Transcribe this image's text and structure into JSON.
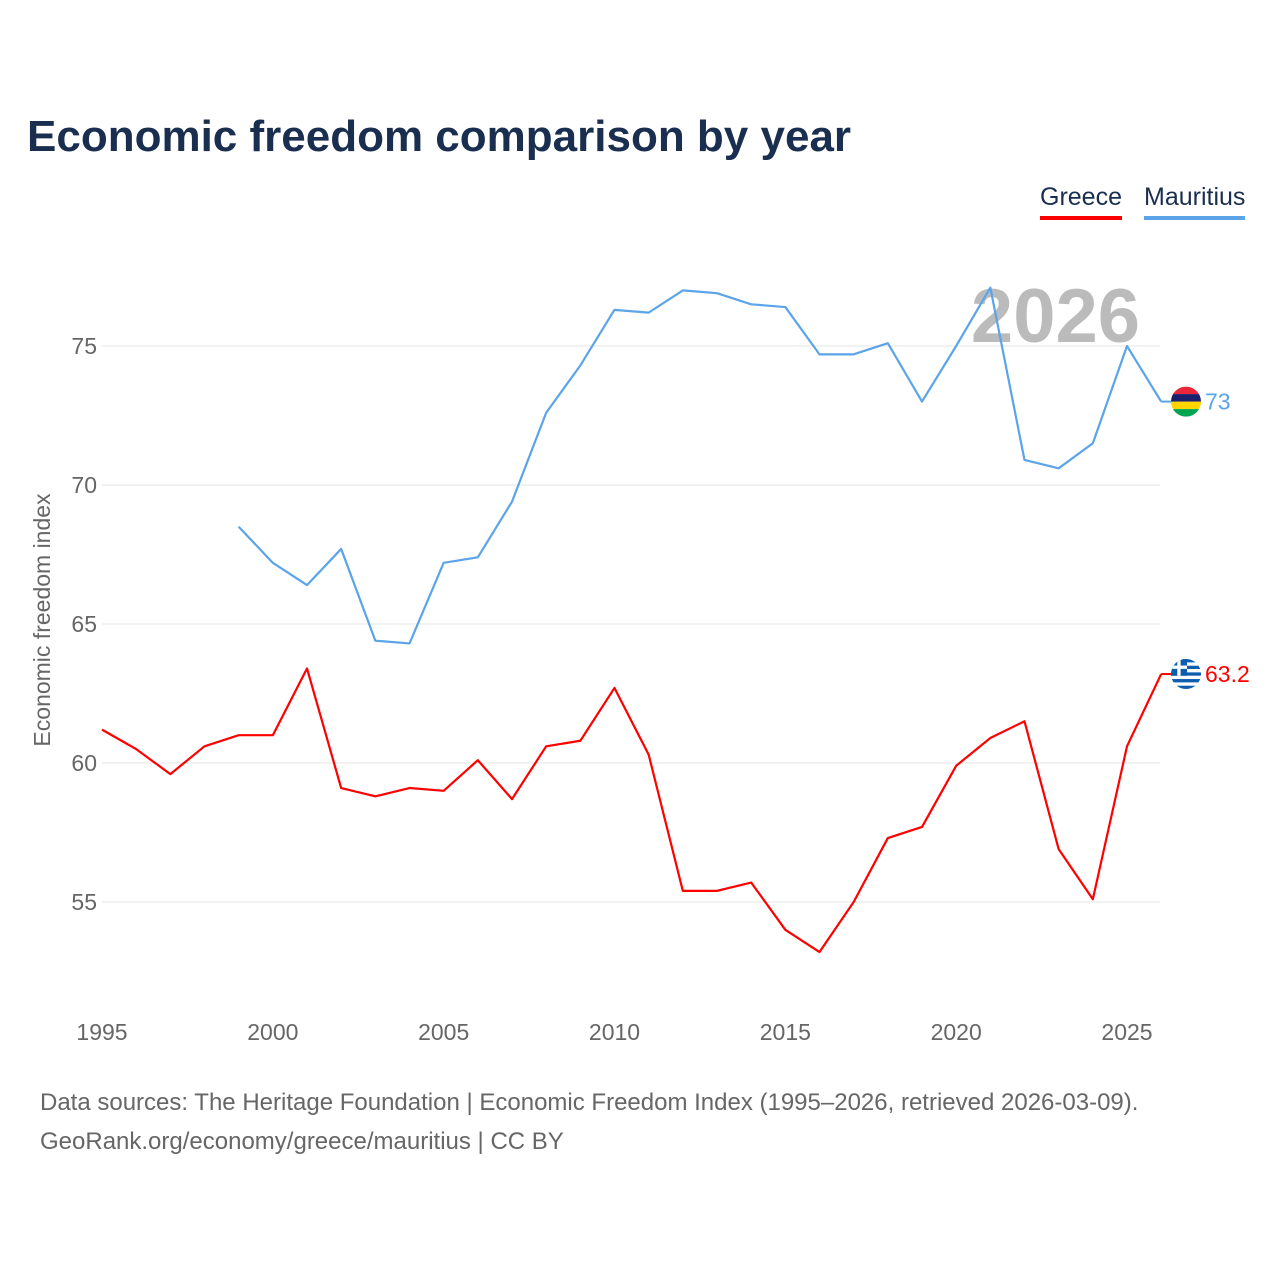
{
  "title": "Economic freedom comparison by year",
  "footer": {
    "line1": "Data sources: The Heritage Foundation | Economic Freedom Index (1995–2026, retrieved 2026-03-09).",
    "line2": "GeoRank.org/economy/greece/mauritius | CC BY"
  },
  "chart_data": {
    "type": "line",
    "title": "Economic freedom comparison by year",
    "xlabel": "",
    "ylabel": "Economic freedom index",
    "year_watermark": "2026",
    "xlim": [
      1995,
      2026
    ],
    "ylim": [
      52,
      78
    ],
    "xticks": [
      1995,
      2000,
      2005,
      2010,
      2015,
      2020,
      2025
    ],
    "yticks": [
      55,
      60,
      65,
      70,
      75
    ],
    "grid": true,
    "legend_position": "top-right",
    "series": [
      {
        "name": "Greece",
        "color": "#ff0000",
        "end_label": "63.2",
        "flag": "greece",
        "x": [
          1995,
          1996,
          1997,
          1998,
          1999,
          2000,
          2001,
          2002,
          2003,
          2004,
          2005,
          2006,
          2007,
          2008,
          2009,
          2010,
          2011,
          2012,
          2013,
          2014,
          2015,
          2016,
          2017,
          2018,
          2019,
          2020,
          2021,
          2022,
          2023,
          2024,
          2025,
          2026
        ],
        "y": [
          61.2,
          60.5,
          59.6,
          60.6,
          61.0,
          61.0,
          63.4,
          59.1,
          58.8,
          59.1,
          59.0,
          60.1,
          58.7,
          60.6,
          60.8,
          62.7,
          60.3,
          55.4,
          55.4,
          55.7,
          54.0,
          53.2,
          55.0,
          57.3,
          57.7,
          59.9,
          60.9,
          61.5,
          56.9,
          55.1,
          60.6,
          63.2
        ]
      },
      {
        "name": "Mauritius",
        "color": "#5ba4ea",
        "end_label": "73",
        "flag": "mauritius",
        "x": [
          1999,
          2000,
          2001,
          2002,
          2003,
          2004,
          2005,
          2006,
          2007,
          2008,
          2009,
          2010,
          2011,
          2012,
          2013,
          2014,
          2015,
          2016,
          2017,
          2018,
          2019,
          2020,
          2021,
          2022,
          2023,
          2024,
          2025,
          2026
        ],
        "y": [
          68.5,
          67.2,
          66.4,
          67.7,
          64.4,
          64.3,
          67.2,
          67.4,
          69.4,
          72.6,
          74.3,
          76.3,
          76.2,
          77.0,
          76.9,
          76.5,
          76.4,
          74.7,
          74.7,
          75.1,
          73.0,
          75.0,
          77.1,
          70.9,
          70.6,
          71.5,
          75.0,
          73.0
        ]
      }
    ]
  }
}
